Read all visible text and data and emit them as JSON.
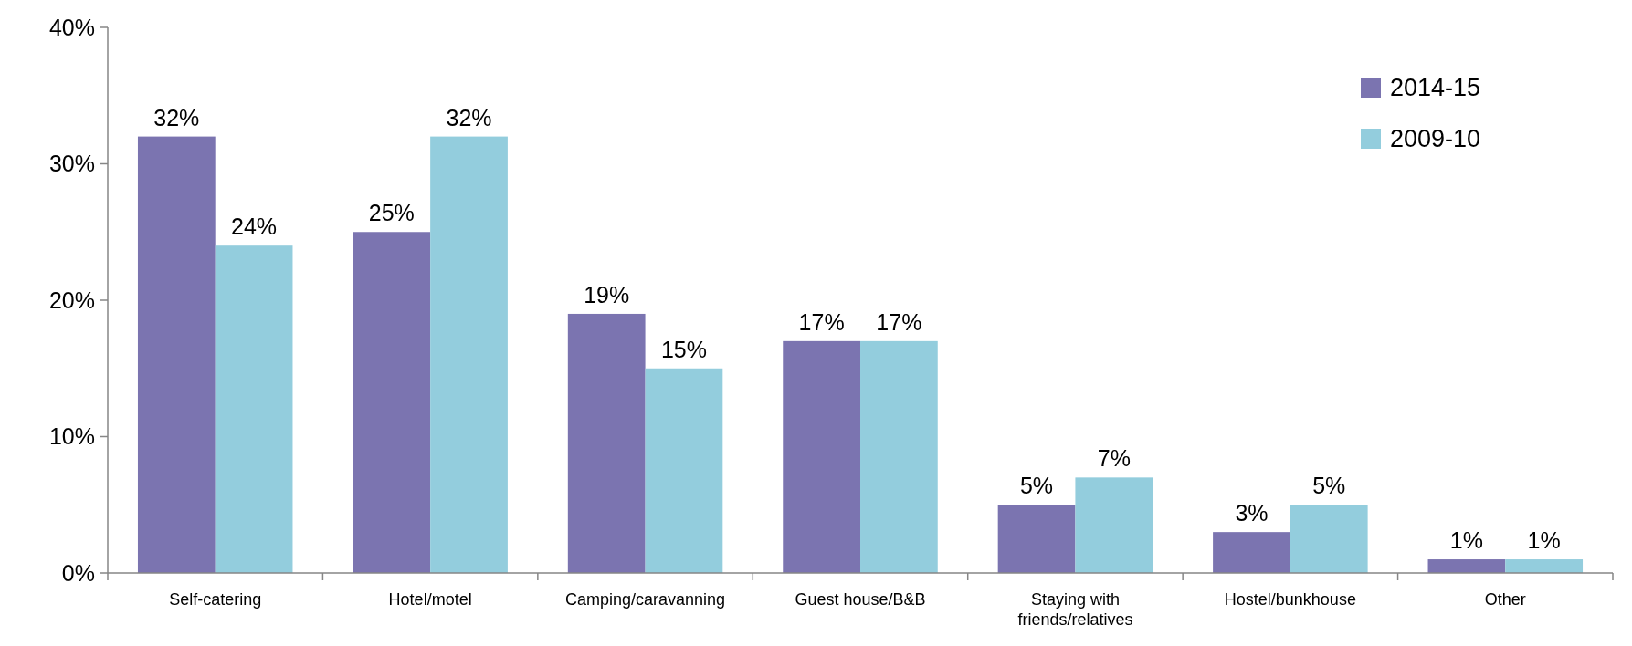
{
  "chart_data": {
    "type": "bar",
    "categories": [
      "Self-catering",
      "Hotel/motel",
      "Camping/caravanning",
      "Guest house/B&B",
      "Staying with friends/relatives",
      "Hostel/bunkhouse",
      "Other"
    ],
    "series": [
      {
        "name": "2014-15",
        "color": "#7b74b0",
        "values": [
          32,
          25,
          19,
          17,
          5,
          3,
          1
        ],
        "value_labels": [
          "32%",
          "25%",
          "19%",
          "17%",
          "5%",
          "3%",
          "1%"
        ]
      },
      {
        "name": "2009-10",
        "color": "#93cddd",
        "values": [
          24,
          32,
          15,
          17,
          7,
          5,
          1
        ],
        "value_labels": [
          "24%",
          "32%",
          "15%",
          "17%",
          "7%",
          "5%",
          "1%"
        ]
      }
    ],
    "ylim": [
      0,
      40
    ],
    "yticks": [
      {
        "value": 0,
        "label": "0%"
      },
      {
        "value": 10,
        "label": "10%"
      },
      {
        "value": 20,
        "label": "20%"
      },
      {
        "value": 30,
        "label": "30%"
      },
      {
        "value": 40,
        "label": "40%"
      }
    ],
    "grid": false,
    "legend": "top right"
  }
}
